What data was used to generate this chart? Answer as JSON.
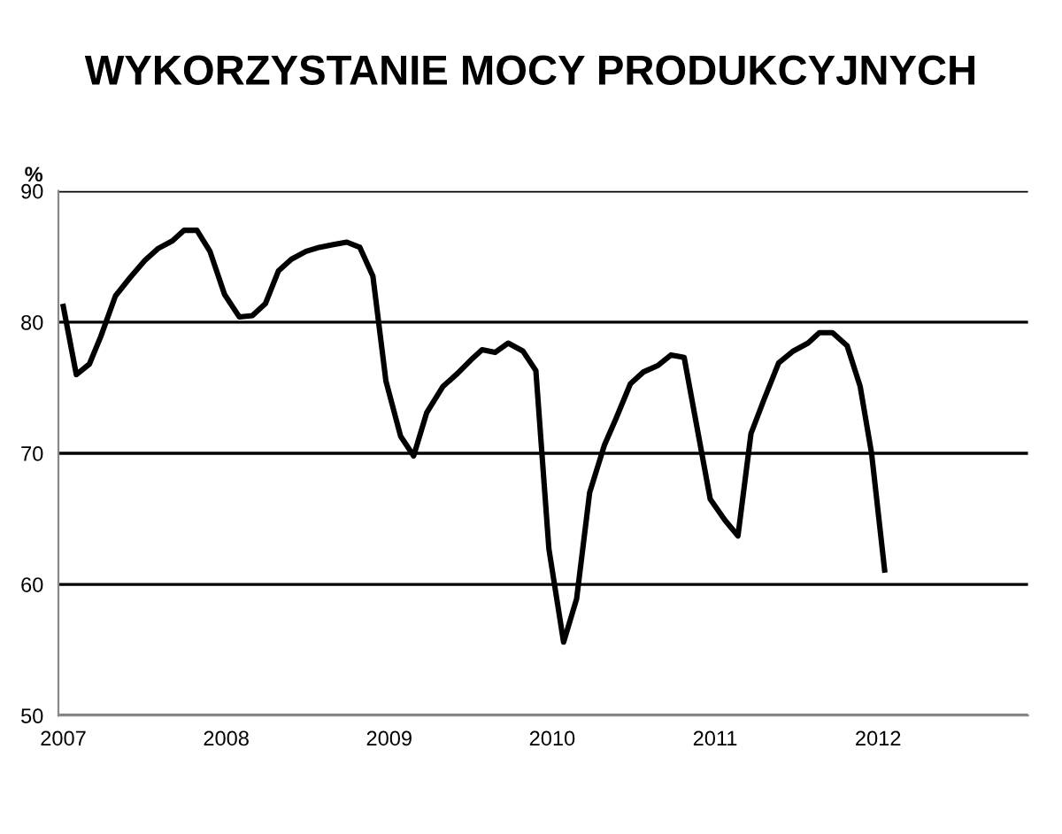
{
  "chart_data": {
    "type": "line",
    "title": "WYKORZYSTANIE MOCY PRODUKCYJNYCH",
    "ylabel": "%",
    "x": [
      2007.0,
      2007.08,
      2007.16,
      2007.23,
      2007.32,
      2007.41,
      2007.5,
      2007.58,
      2007.67,
      2007.74,
      2007.82,
      2007.9,
      2007.99,
      2008.08,
      2008.16,
      2008.24,
      2008.32,
      2008.4,
      2008.49,
      2008.57,
      2008.65,
      2008.74,
      2008.82,
      2008.9,
      2008.98,
      2009.07,
      2009.15,
      2009.23,
      2009.33,
      2009.42,
      2009.5,
      2009.57,
      2009.65,
      2009.73,
      2009.82,
      2009.9,
      2009.98,
      2010.07,
      2010.15,
      2010.23,
      2010.32,
      2010.39,
      2010.48,
      2010.56,
      2010.65,
      2010.73,
      2010.81,
      2010.97,
      2011.06,
      2011.14,
      2011.22,
      2011.3,
      2011.39,
      2011.48,
      2011.57,
      2011.64,
      2011.72,
      2011.81,
      2011.89,
      2011.96,
      2012.04
    ],
    "series": [
      {
        "color": "#000000",
        "values": [
          81.2,
          76.0,
          76.8,
          78.9,
          82.0,
          83.4,
          84.7,
          85.6,
          86.2,
          87.0,
          87.0,
          85.4,
          82.1,
          80.4,
          80.5,
          81.4,
          83.9,
          84.8,
          85.4,
          85.7,
          85.9,
          86.1,
          85.7,
          83.5,
          75.5,
          71.3,
          69.8,
          73.1,
          75.1,
          76.1,
          77.1,
          77.9,
          77.7,
          78.4,
          77.8,
          76.3,
          62.7,
          55.6,
          58.9,
          67.0,
          70.6,
          72.6,
          75.3,
          76.2,
          76.7,
          77.5,
          77.3,
          66.5,
          64.9,
          63.7,
          71.5,
          74.1,
          76.9,
          77.8,
          78.4,
          79.2,
          79.2,
          78.2,
          75.1,
          70.0,
          61.1
        ]
      }
    ],
    "xlim": [
      2006.97,
      2012.92
    ],
    "xticks": [
      2007,
      2008,
      2009,
      2010,
      2011,
      2012
    ],
    "ylim": [
      50,
      90
    ],
    "yticks": [
      50,
      60,
      70,
      80,
      90
    ],
    "grid": "y",
    "marker": "none",
    "line_style": "solid",
    "legend": false
  }
}
